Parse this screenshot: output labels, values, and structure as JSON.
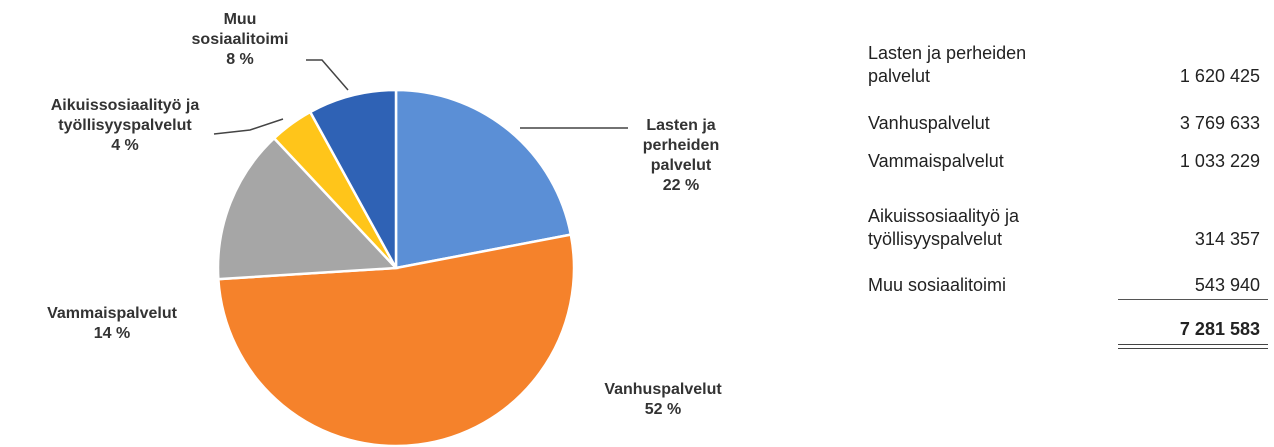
{
  "chart_data": {
    "type": "pie",
    "categories": [
      "Lasten ja perheiden palvelut",
      "Vanhuspalvelut",
      "Vammaispalvelut",
      "Aikuissosiaalityö ja työllisyyspalvelut",
      "Muu sosiaalitoimi"
    ],
    "values": [
      22,
      52,
      14,
      4,
      8
    ],
    "value_labels": [
      "22 %",
      "52 %",
      "14 %",
      "4 %",
      "8 %"
    ],
    "colors": [
      "#5b8fd6",
      "#f5822b",
      "#a6a6a6",
      "#ffc51a",
      "#2f62b5"
    ]
  },
  "table": {
    "rows": [
      [
        "Lasten ja perheiden palvelut",
        "1 620 425"
      ],
      [
        "Vanhuspalvelut",
        "3 769 633"
      ],
      [
        "Vammaispalvelut",
        "1 033 229"
      ],
      [
        "Aikuissosiaalityö ja työllisyyspalvelut",
        "314 357"
      ],
      [
        "Muu sosiaalitoimi",
        "543 940"
      ]
    ],
    "total": "7 281 583"
  }
}
